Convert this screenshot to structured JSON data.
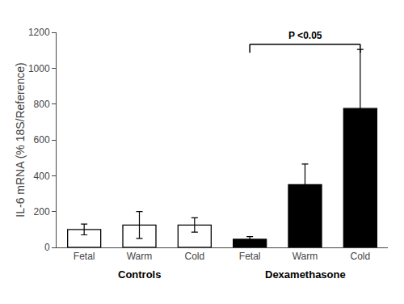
{
  "chart_data": {
    "type": "bar",
    "categories": [
      "Fetal",
      "Warm",
      "Cold",
      "Fetal",
      "Warm",
      "Cold"
    ],
    "values": [
      100,
      125,
      125,
      45,
      350,
      775
    ],
    "errors": [
      30,
      75,
      40,
      15,
      115,
      330
    ],
    "colors": [
      "white",
      "white",
      "white",
      "black",
      "black",
      "black"
    ],
    "ylabel": "IL-6 mRNA (% 18S/Reference)",
    "ylim": [
      0,
      1200
    ],
    "yticks": [
      0,
      200,
      400,
      600,
      800,
      1000,
      1200
    ],
    "annotations": [
      {
        "text": "Controls",
        "categories": [
          0,
          1,
          2
        ]
      },
      {
        "text": "Dexamethasone",
        "categories": [
          3,
          4,
          5
        ]
      },
      {
        "text": "P <0.05",
        "bracket": [
          3,
          5
        ]
      }
    ],
    "grid": false
  }
}
